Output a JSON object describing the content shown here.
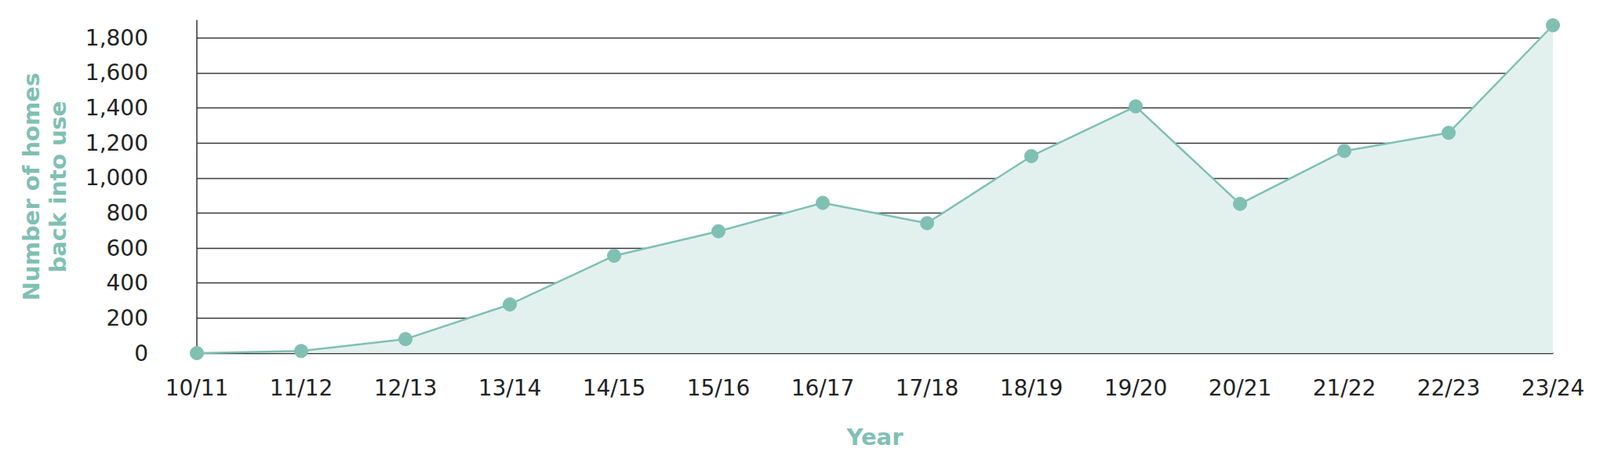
{
  "chart_data": {
    "type": "line",
    "x_label": "Year",
    "y_label": "Number of homes\nback into use",
    "categories": [
      "10/11",
      "11/12",
      "12/13",
      "13/14",
      "14/15",
      "15/16",
      "16/17",
      "17/18",
      "18/19",
      "19/20",
      "20/21",
      "21/22",
      "22/23",
      "23/24"
    ],
    "values": [
      0,
      12,
      80,
      278,
      556,
      696,
      858,
      742,
      1125,
      1409,
      852,
      1154,
      1258,
      1872
    ],
    "color": "#7fc0b3",
    "marker": "circle",
    "ylim": [
      0,
      1900
    ],
    "yticks": [
      0,
      200,
      400,
      600,
      800,
      {
        "value": 1000,
        "label": "1,000"
      },
      {
        "value": 1200,
        "label": "1,200"
      },
      {
        "value": 1400,
        "label": "1,400"
      },
      {
        "value": 1600,
        "label": "1,600"
      },
      {
        "value": 1800,
        "label": "1,800"
      }
    ],
    "grid": true
  }
}
